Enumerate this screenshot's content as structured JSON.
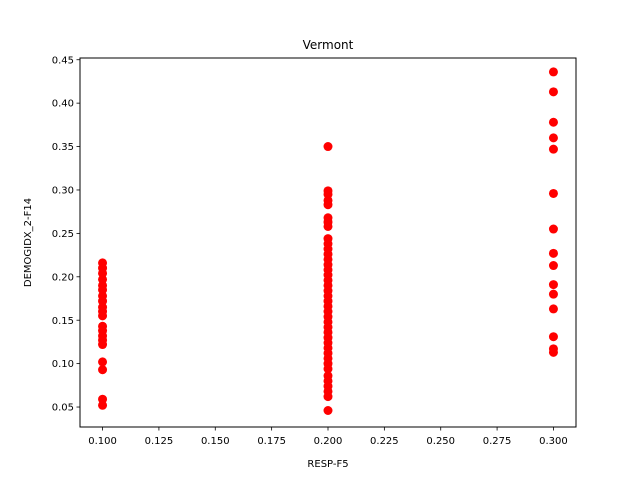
{
  "chart_data": {
    "type": "scatter",
    "title": "Vermont",
    "xlabel": "RESP-F5",
    "ylabel": "DEMOGIDX_2-F14",
    "xlim": [
      0.09,
      0.31
    ],
    "ylim": [
      0.027,
      0.452
    ],
    "x_ticks": [
      0.1,
      0.125,
      0.15,
      0.175,
      0.2,
      0.225,
      0.25,
      0.275,
      0.3
    ],
    "x_tick_labels": [
      "0.100",
      "0.125",
      "0.150",
      "0.175",
      "0.200",
      "0.225",
      "0.250",
      "0.275",
      "0.300"
    ],
    "y_ticks": [
      0.05,
      0.1,
      0.15,
      0.2,
      0.25,
      0.3,
      0.35,
      0.4,
      0.45
    ],
    "y_tick_labels": [
      "0.05",
      "0.10",
      "0.15",
      "0.20",
      "0.25",
      "0.30",
      "0.35",
      "0.40",
      "0.45"
    ],
    "grid": false,
    "marker_color": "#ff0000",
    "series": [
      {
        "points": [
          [
            0.1,
            0.216
          ],
          [
            0.1,
            0.21
          ],
          [
            0.1,
            0.204
          ],
          [
            0.1,
            0.197
          ],
          [
            0.1,
            0.19
          ],
          [
            0.1,
            0.185
          ],
          [
            0.1,
            0.178
          ],
          [
            0.1,
            0.172
          ],
          [
            0.1,
            0.165
          ],
          [
            0.1,
            0.16
          ],
          [
            0.1,
            0.155
          ],
          [
            0.1,
            0.143
          ],
          [
            0.1,
            0.138
          ],
          [
            0.1,
            0.132
          ],
          [
            0.1,
            0.127
          ],
          [
            0.1,
            0.122
          ],
          [
            0.1,
            0.102
          ],
          [
            0.1,
            0.093
          ],
          [
            0.1,
            0.059
          ],
          [
            0.1,
            0.052
          ],
          [
            0.2,
            0.35
          ],
          [
            0.2,
            0.299
          ],
          [
            0.2,
            0.295
          ],
          [
            0.2,
            0.288
          ],
          [
            0.2,
            0.283
          ],
          [
            0.2,
            0.268
          ],
          [
            0.2,
            0.263
          ],
          [
            0.2,
            0.258
          ],
          [
            0.2,
            0.244
          ],
          [
            0.2,
            0.238
          ],
          [
            0.2,
            0.232
          ],
          [
            0.2,
            0.226
          ],
          [
            0.2,
            0.22
          ],
          [
            0.2,
            0.214
          ],
          [
            0.2,
            0.208
          ],
          [
            0.2,
            0.202
          ],
          [
            0.2,
            0.196
          ],
          [
            0.2,
            0.19
          ],
          [
            0.2,
            0.184
          ],
          [
            0.2,
            0.178
          ],
          [
            0.2,
            0.172
          ],
          [
            0.2,
            0.166
          ],
          [
            0.2,
            0.16
          ],
          [
            0.2,
            0.154
          ],
          [
            0.2,
            0.148
          ],
          [
            0.2,
            0.142
          ],
          [
            0.2,
            0.136
          ],
          [
            0.2,
            0.13
          ],
          [
            0.2,
            0.124
          ],
          [
            0.2,
            0.118
          ],
          [
            0.2,
            0.112
          ],
          [
            0.2,
            0.106
          ],
          [
            0.2,
            0.1
          ],
          [
            0.2,
            0.094
          ],
          [
            0.2,
            0.086
          ],
          [
            0.2,
            0.08
          ],
          [
            0.2,
            0.074
          ],
          [
            0.2,
            0.068
          ],
          [
            0.2,
            0.062
          ],
          [
            0.2,
            0.046
          ],
          [
            0.3,
            0.436
          ],
          [
            0.3,
            0.413
          ],
          [
            0.3,
            0.378
          ],
          [
            0.3,
            0.36
          ],
          [
            0.3,
            0.347
          ],
          [
            0.3,
            0.296
          ],
          [
            0.3,
            0.255
          ],
          [
            0.3,
            0.227
          ],
          [
            0.3,
            0.213
          ],
          [
            0.3,
            0.191
          ],
          [
            0.3,
            0.18
          ],
          [
            0.3,
            0.163
          ],
          [
            0.3,
            0.131
          ],
          [
            0.3,
            0.117
          ],
          [
            0.3,
            0.113
          ]
        ]
      }
    ]
  }
}
